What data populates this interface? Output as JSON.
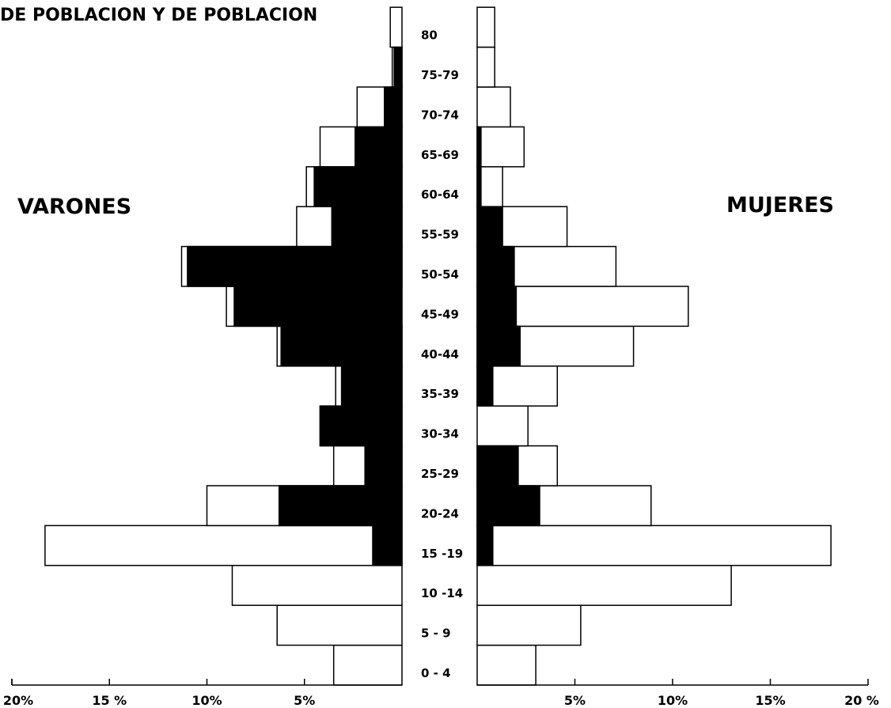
{
  "chart_data": {
    "type": "bar",
    "title": "DE POBLACION Y DE POBLACION",
    "orientation": "horizontal-pyramid",
    "left_label": "VARONES",
    "right_label": "MUJERES",
    "categories": [
      "0 - 4",
      "5 - 9",
      "10 -14",
      "15 -19",
      "20-24",
      "25-29",
      "30-34",
      "35-39",
      "40-44",
      "45-49",
      "50-54",
      "55-59",
      "60-64",
      "65-69",
      "70-74",
      "75-79",
      "80"
    ],
    "x_ticks_left": [
      "20%",
      "15 %",
      "10%",
      "5%"
    ],
    "x_ticks_right": [
      "5%",
      "10%",
      "15%",
      "20 %"
    ],
    "x_tick_values": [
      20,
      15,
      10,
      5
    ],
    "xlim": [
      0,
      20
    ],
    "series": [
      {
        "side": "left",
        "fill": "white",
        "values": [
          3.5,
          6.4,
          8.7,
          18.3,
          10.0,
          3.5,
          4.2,
          3.4,
          6.4,
          9.0,
          11.3,
          5.4,
          4.9,
          4.2,
          2.3,
          0.5,
          0.6
        ]
      },
      {
        "side": "left",
        "fill": "black",
        "values": [
          0,
          0,
          0,
          1.5,
          6.3,
          1.9,
          4.2,
          3.1,
          6.2,
          8.6,
          11.0,
          3.6,
          4.5,
          2.4,
          0.9,
          0.4,
          0
        ]
      },
      {
        "side": "right",
        "fill": "white",
        "values": [
          3.0,
          5.3,
          13.0,
          18.1,
          8.9,
          4.1,
          2.6,
          4.1,
          8.0,
          10.8,
          7.1,
          4.6,
          1.3,
          2.4,
          1.7,
          0.9,
          0.9
        ]
      },
      {
        "side": "right",
        "fill": "black",
        "values": [
          0,
          0,
          0,
          0.8,
          3.2,
          2.1,
          0,
          0.8,
          2.2,
          2.0,
          1.9,
          1.3,
          0.2,
          0.2,
          0,
          0,
          0
        ]
      }
    ],
    "colors": {
      "filled": "#000000",
      "empty": "#ffffff",
      "stroke": "#000000"
    }
  }
}
